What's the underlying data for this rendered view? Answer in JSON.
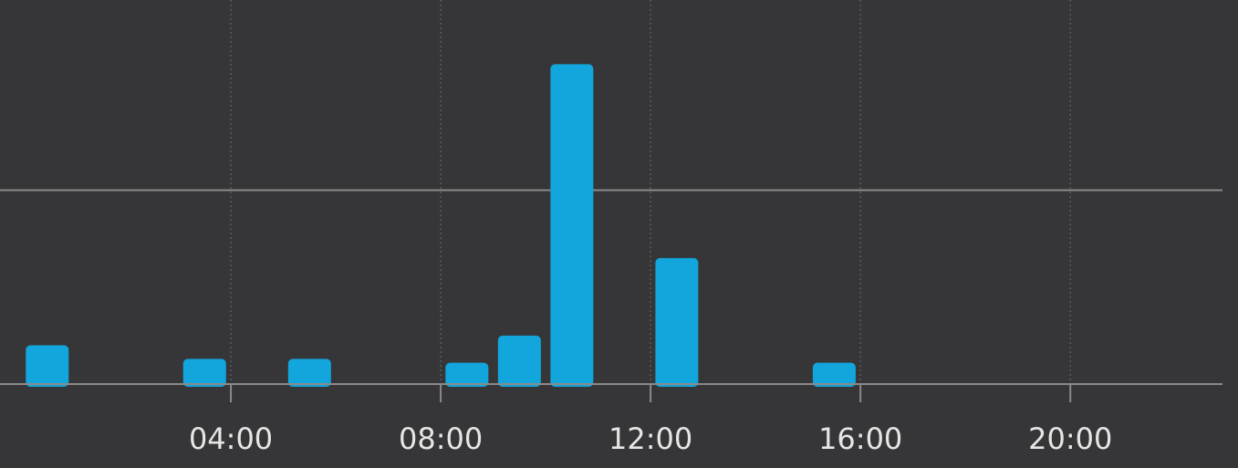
{
  "colors": {
    "background": "#363638",
    "bar": "#12a6dc",
    "baseline": "#8a8a8a",
    "gridline_dotted": "#5a5a5c",
    "tick_label": "#e6e6e6"
  },
  "chart_data": {
    "type": "bar",
    "title": "",
    "xlabel": "",
    "ylabel": "",
    "x_tick_labels": [
      "04:00",
      "08:00",
      "12:00",
      "16:00",
      "20:00"
    ],
    "x_ticks_hours": [
      4,
      8,
      12,
      16,
      20
    ],
    "xlim_hours": [
      -0.4,
      22.9
    ],
    "ylim": [
      0,
      100
    ],
    "horizontal_gridline_value": 50,
    "vertical_gridlines": "dotted",
    "legend": "none",
    "bars": [
      {
        "hour": 0,
        "value": 10
      },
      {
        "hour": 3,
        "value": 6.5
      },
      {
        "hour": 5,
        "value": 6.5
      },
      {
        "hour": 8,
        "value": 5.5
      },
      {
        "hour": 9,
        "value": 12.5
      },
      {
        "hour": 10,
        "value": 82.5
      },
      {
        "hour": 12,
        "value": 32.5
      },
      {
        "hour": 15,
        "value": 5.5
      }
    ]
  }
}
